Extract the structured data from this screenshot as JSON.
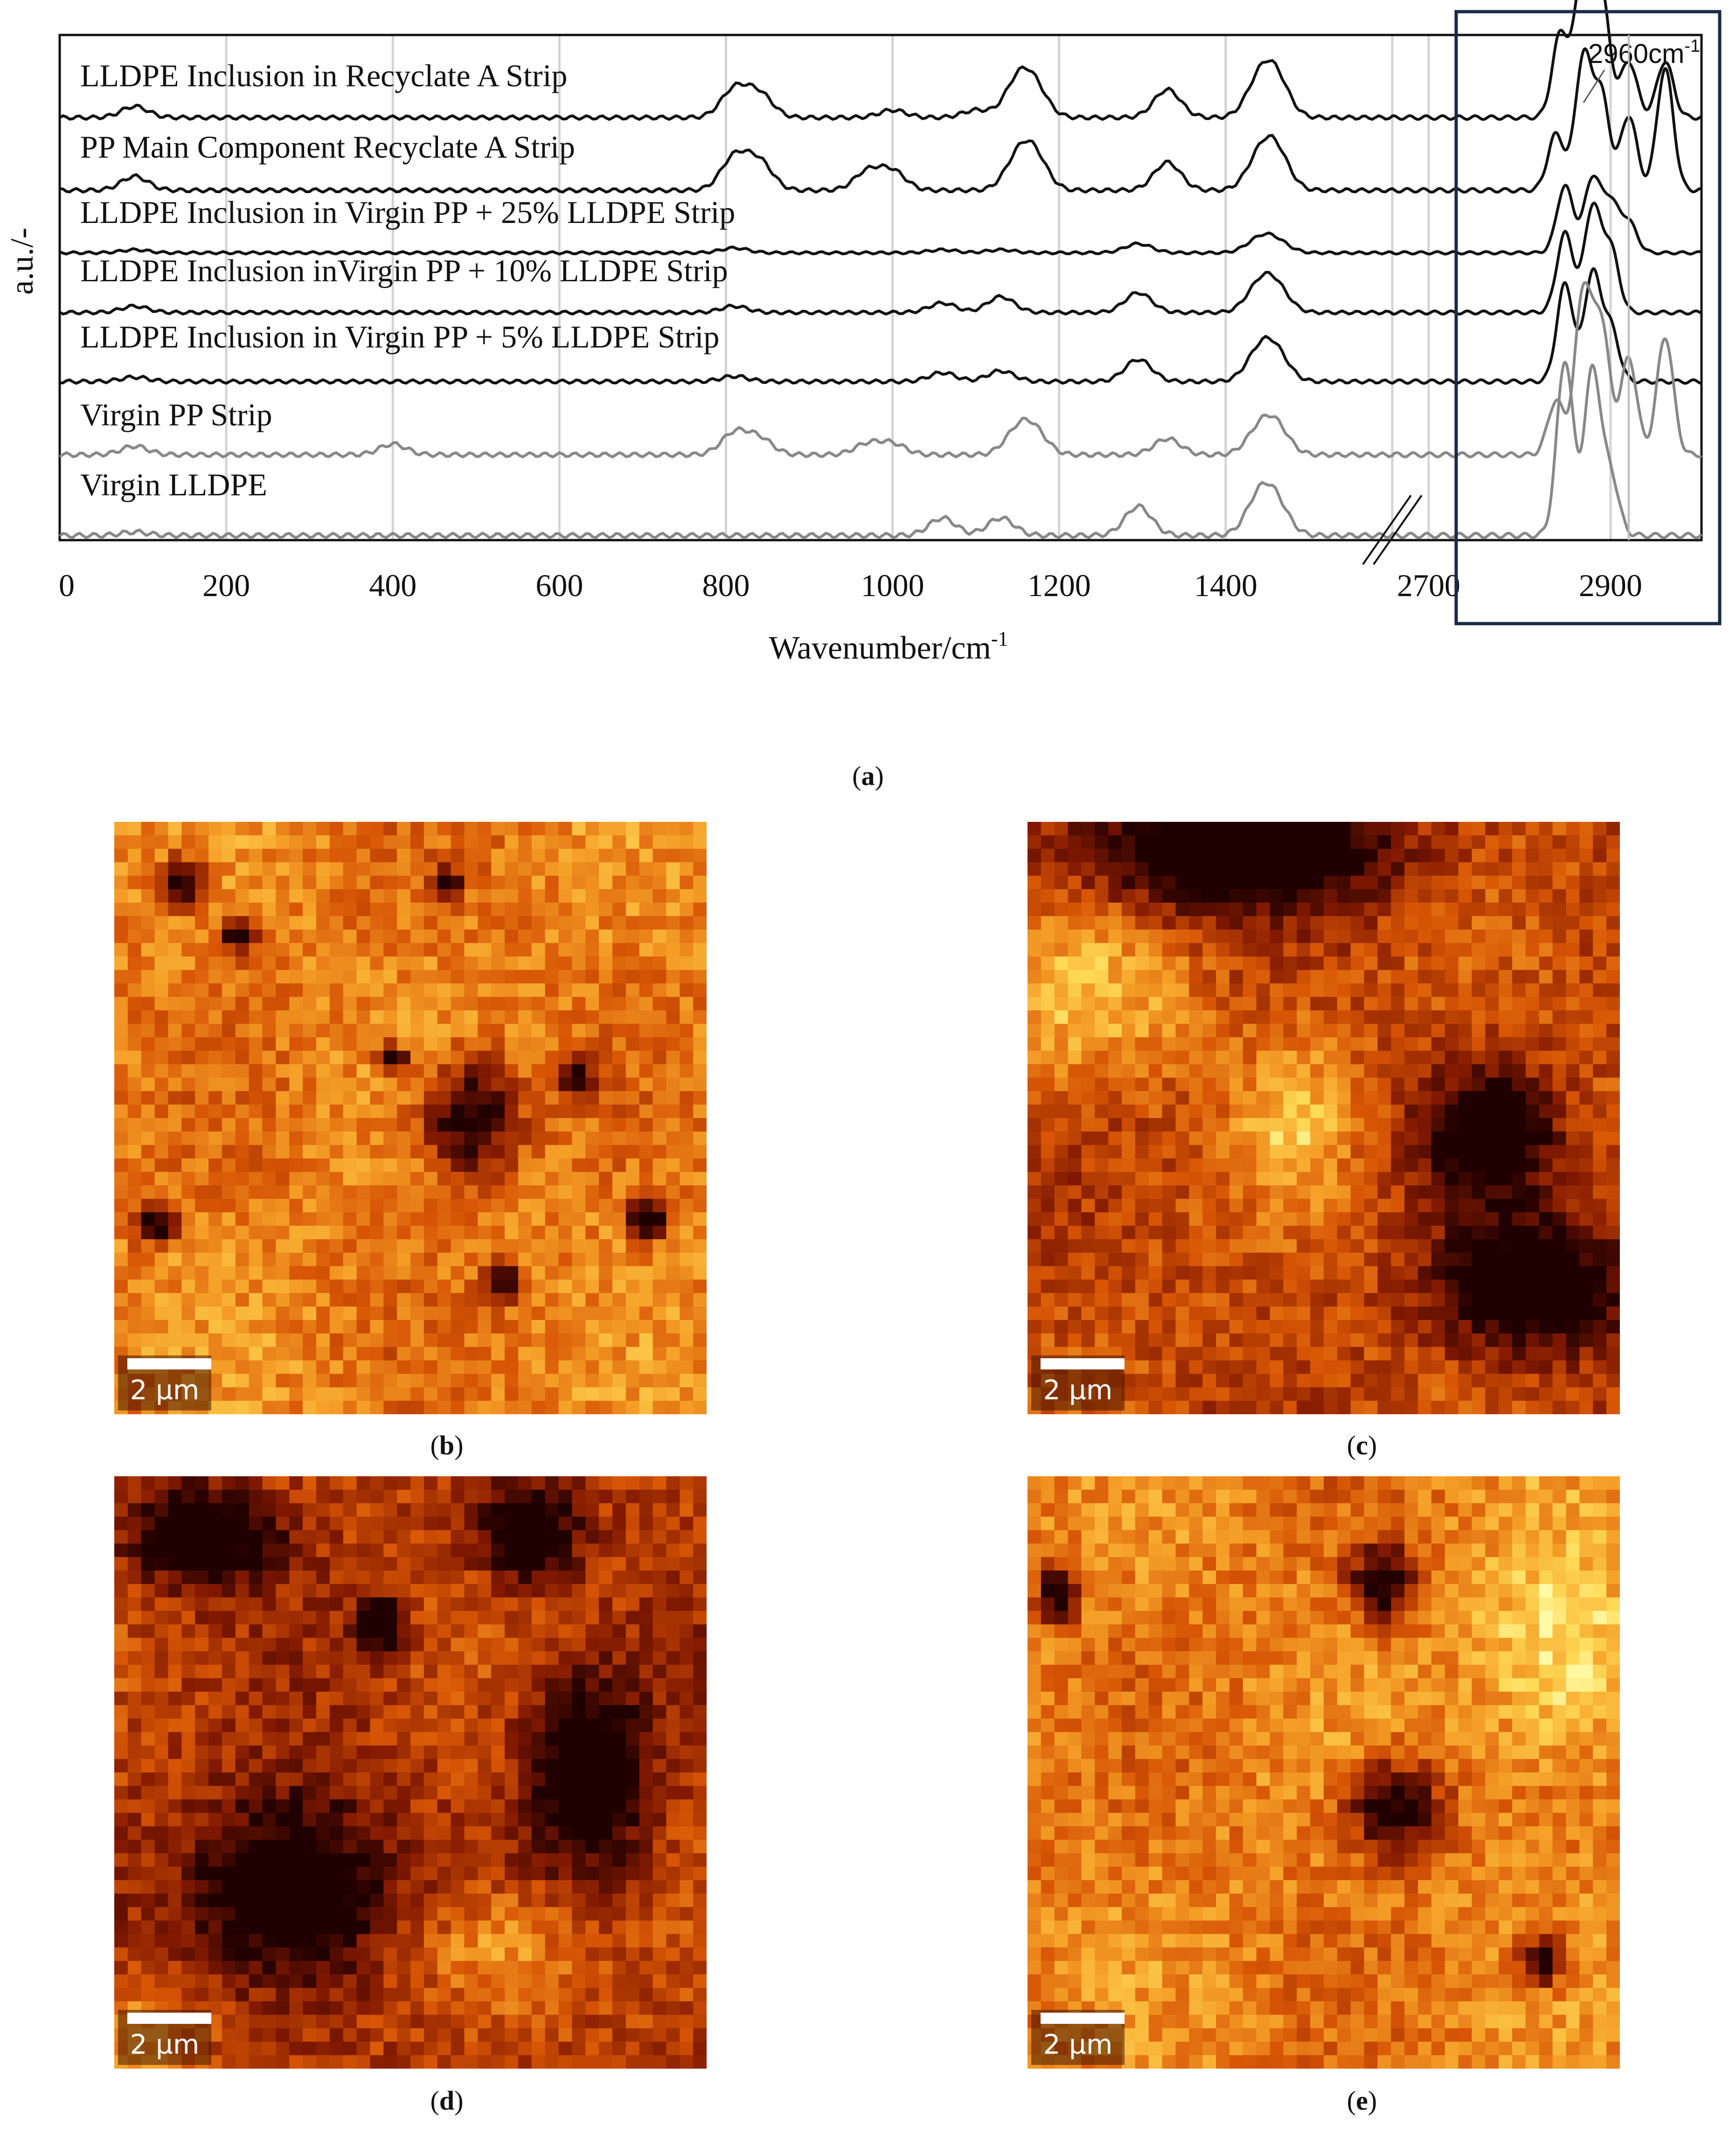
{
  "chart_data": {
    "type": "line",
    "ylabel": "a.u./-",
    "xlabel": "Wavenumber/cm",
    "xlabel_superscript": "-1",
    "x_axis_break": true,
    "x_ticks_segment1": [
      "0",
      "200",
      "400",
      "600",
      "800",
      "1000",
      "1200",
      "1400"
    ],
    "x_ticks_segment2": [
      "2700",
      "2900"
    ],
    "xlim_segment1": [
      0,
      1600
    ],
    "xlim_segment2": [
      2660,
      3000
    ],
    "grid": "vertical",
    "highlight": {
      "label": "2960cm",
      "label_superscript": "-1",
      "x_range": [
        2790,
        3000
      ]
    },
    "series": [
      {
        "name": "LLDPE Inclusion in Recyclate A Strip",
        "color": "#111111",
        "peaks": [
          [
            90,
            0.12
          ],
          [
            810,
            0.3
          ],
          [
            840,
            0.25
          ],
          [
            1000,
            0.08
          ],
          [
            1100,
            0.08
          ],
          [
            1150,
            0.35
          ],
          [
            1170,
            0.3
          ],
          [
            1330,
            0.3
          ],
          [
            1440,
            0.35
          ],
          [
            1460,
            0.4
          ],
          [
            2845,
            0.9
          ],
          [
            2870,
            1.6
          ],
          [
            2890,
            1.3
          ],
          [
            2920,
            0.6
          ],
          [
            2960,
            0.6
          ]
        ]
      },
      {
        "name": "PP Main Component Recyclate A Strip",
        "color": "#111111",
        "peaks": [
          [
            90,
            0.15
          ],
          [
            810,
            0.35
          ],
          [
            840,
            0.3
          ],
          [
            970,
            0.2
          ],
          [
            1000,
            0.2
          ],
          [
            1150,
            0.3
          ],
          [
            1170,
            0.35
          ],
          [
            1330,
            0.3
          ],
          [
            1440,
            0.3
          ],
          [
            1460,
            0.4
          ],
          [
            2840,
            0.6
          ],
          [
            2870,
            1.4
          ],
          [
            2890,
            1.0
          ],
          [
            2920,
            0.8
          ],
          [
            2960,
            1.3
          ]
        ]
      },
      {
        "name": "LLDPE Inclusion in Virgin PP + 25% LLDPE Strip",
        "color": "#111111",
        "peaks": [
          [
            90,
            0.05
          ],
          [
            810,
            0.08
          ],
          [
            1060,
            0.05
          ],
          [
            1130,
            0.05
          ],
          [
            1295,
            0.15
          ],
          [
            1440,
            0.2
          ],
          [
            1460,
            0.18
          ],
          [
            2850,
            1.1
          ],
          [
            2880,
            1.2
          ],
          [
            2900,
            0.8
          ],
          [
            2920,
            0.5
          ]
        ]
      },
      {
        "name": "LLDPE Inclusion inVirgin PP + 10% LLDPE Strip",
        "color": "#111111",
        "peaks": [
          [
            90,
            0.08
          ],
          [
            810,
            0.08
          ],
          [
            1060,
            0.12
          ],
          [
            1130,
            0.2
          ],
          [
            1295,
            0.25
          ],
          [
            1440,
            0.3
          ],
          [
            1460,
            0.3
          ],
          [
            2850,
            1.0
          ],
          [
            2880,
            1.3
          ],
          [
            2900,
            0.8
          ]
        ]
      },
      {
        "name": "LLDPE Inclusion in Virgin PP + 5% LLDPE Strip",
        "color": "#111111",
        "peaks": [
          [
            90,
            0.05
          ],
          [
            810,
            0.06
          ],
          [
            1060,
            0.1
          ],
          [
            1130,
            0.12
          ],
          [
            1295,
            0.25
          ],
          [
            1440,
            0.3
          ],
          [
            1460,
            0.3
          ],
          [
            2850,
            1.1
          ],
          [
            2880,
            1.2
          ],
          [
            2900,
            0.6
          ]
        ]
      },
      {
        "name": "Virgin PP Strip",
        "color": "#888888",
        "peaks": [
          [
            90,
            0.08
          ],
          [
            400,
            0.1
          ],
          [
            810,
            0.2
          ],
          [
            840,
            0.15
          ],
          [
            970,
            0.1
          ],
          [
            1000,
            0.1
          ],
          [
            1150,
            0.2
          ],
          [
            1170,
            0.2
          ],
          [
            1330,
            0.15
          ],
          [
            1440,
            0.2
          ],
          [
            1460,
            0.25
          ],
          [
            2840,
            0.5
          ],
          [
            2870,
            1.5
          ],
          [
            2890,
            1.2
          ],
          [
            2920,
            0.9
          ],
          [
            2960,
            1.1
          ]
        ]
      },
      {
        "name": "Virgin LLDPE",
        "color": "#888888",
        "peaks": [
          [
            90,
            0.03
          ],
          [
            1060,
            0.15
          ],
          [
            1130,
            0.15
          ],
          [
            1295,
            0.25
          ],
          [
            1440,
            0.3
          ],
          [
            1460,
            0.25
          ],
          [
            2850,
            1.5
          ],
          [
            2880,
            1.4
          ],
          [
            2900,
            0.5
          ]
        ]
      }
    ]
  },
  "captions": {
    "a": "a",
    "b": "b",
    "c": "c",
    "d": "d",
    "e": "e"
  },
  "scale_label": "2 µm",
  "maps": {
    "b": {
      "base": 0.62,
      "dark": [
        [
          0.6,
          0.5,
          0.1,
          0.12
        ],
        [
          0.12,
          0.1,
          0.05,
          0.05
        ],
        [
          0.21,
          0.19,
          0.04,
          0.04
        ],
        [
          0.56,
          0.1,
          0.03,
          0.03
        ],
        [
          0.78,
          0.43,
          0.04,
          0.04
        ],
        [
          0.07,
          0.68,
          0.04,
          0.04
        ],
        [
          0.9,
          0.67,
          0.04,
          0.04
        ],
        [
          0.66,
          0.78,
          0.04,
          0.04
        ],
        [
          0.47,
          0.4,
          0.03,
          0.03
        ]
      ],
      "bright": []
    },
    "c": {
      "base": 0.45,
      "dark": [
        [
          0.35,
          0.05,
          0.35,
          0.12
        ],
        [
          0.78,
          0.52,
          0.13,
          0.12
        ],
        [
          0.85,
          0.78,
          0.2,
          0.15
        ]
      ],
      "bright": [
        [
          0.1,
          0.3,
          0.2,
          0.15
        ],
        [
          0.45,
          0.5,
          0.1,
          0.15
        ]
      ]
    },
    "d": {
      "base": 0.4,
      "dark": [
        [
          0.15,
          0.1,
          0.15,
          0.1
        ],
        [
          0.3,
          0.7,
          0.2,
          0.2
        ],
        [
          0.8,
          0.5,
          0.12,
          0.2
        ],
        [
          0.45,
          0.25,
          0.05,
          0.05
        ],
        [
          0.7,
          0.1,
          0.1,
          0.1
        ]
      ],
      "bright": [
        [
          0.65,
          0.8,
          0.15,
          0.12
        ],
        [
          0.05,
          0.95,
          0.1,
          0.1
        ]
      ]
    },
    "e": {
      "base": 0.62,
      "dark": [
        [
          0.62,
          0.56,
          0.1,
          0.1
        ],
        [
          0.6,
          0.18,
          0.07,
          0.08
        ],
        [
          0.05,
          0.2,
          0.04,
          0.06
        ],
        [
          0.87,
          0.82,
          0.05,
          0.05
        ]
      ],
      "bright": [
        [
          0.9,
          0.3,
          0.15,
          0.2
        ]
      ]
    }
  }
}
